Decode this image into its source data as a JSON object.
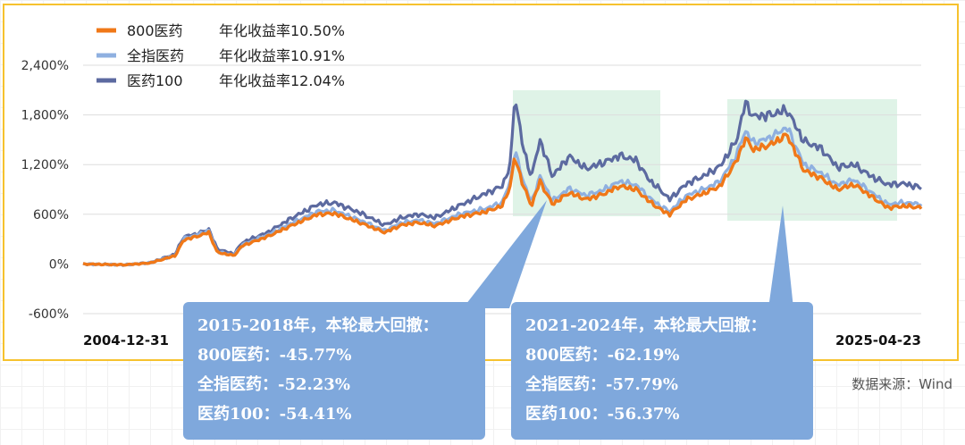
{
  "chart_data": {
    "type": "line",
    "x_range": [
      "2004-12-31",
      "2025-04-23"
    ],
    "xlabels": [
      "2004-12-31",
      "2025-04-23"
    ],
    "yticks": [
      "2,400%",
      "1,800%",
      "1,200%",
      "600%",
      "0%",
      "-600%"
    ],
    "ylim": [
      -600,
      2400
    ],
    "grid": true,
    "legend_position": "top-left",
    "series": [
      {
        "name": "800医药",
        "annual_return": "年化收益率10.50%",
        "color": "#f07818"
      },
      {
        "name": "全指医药",
        "annual_return": "年化收益率10.91%",
        "color": "#8fb0e0"
      },
      {
        "name": "医药100",
        "annual_return": "年化收益率12.04%",
        "color": "#5c6aa0"
      }
    ],
    "shaded_periods": [
      {
        "label": "2015-2018",
        "color": "#dff3e7"
      },
      {
        "label": "2021-2024",
        "color": "#dff3e7"
      }
    ]
  },
  "callouts": [
    {
      "title": "2015-2018年，本轮最大回撤：",
      "lines": [
        "800医药：-45.77%",
        "全指医药：-52.23%",
        "医药100：-54.41%"
      ]
    },
    {
      "title": "2021-2024年，本轮最大回撤：",
      "lines": [
        "800医药：-62.19%",
        "全指医药：-57.79%",
        "医药100：-56.37%"
      ]
    }
  ],
  "source": "数据来源：Wind"
}
